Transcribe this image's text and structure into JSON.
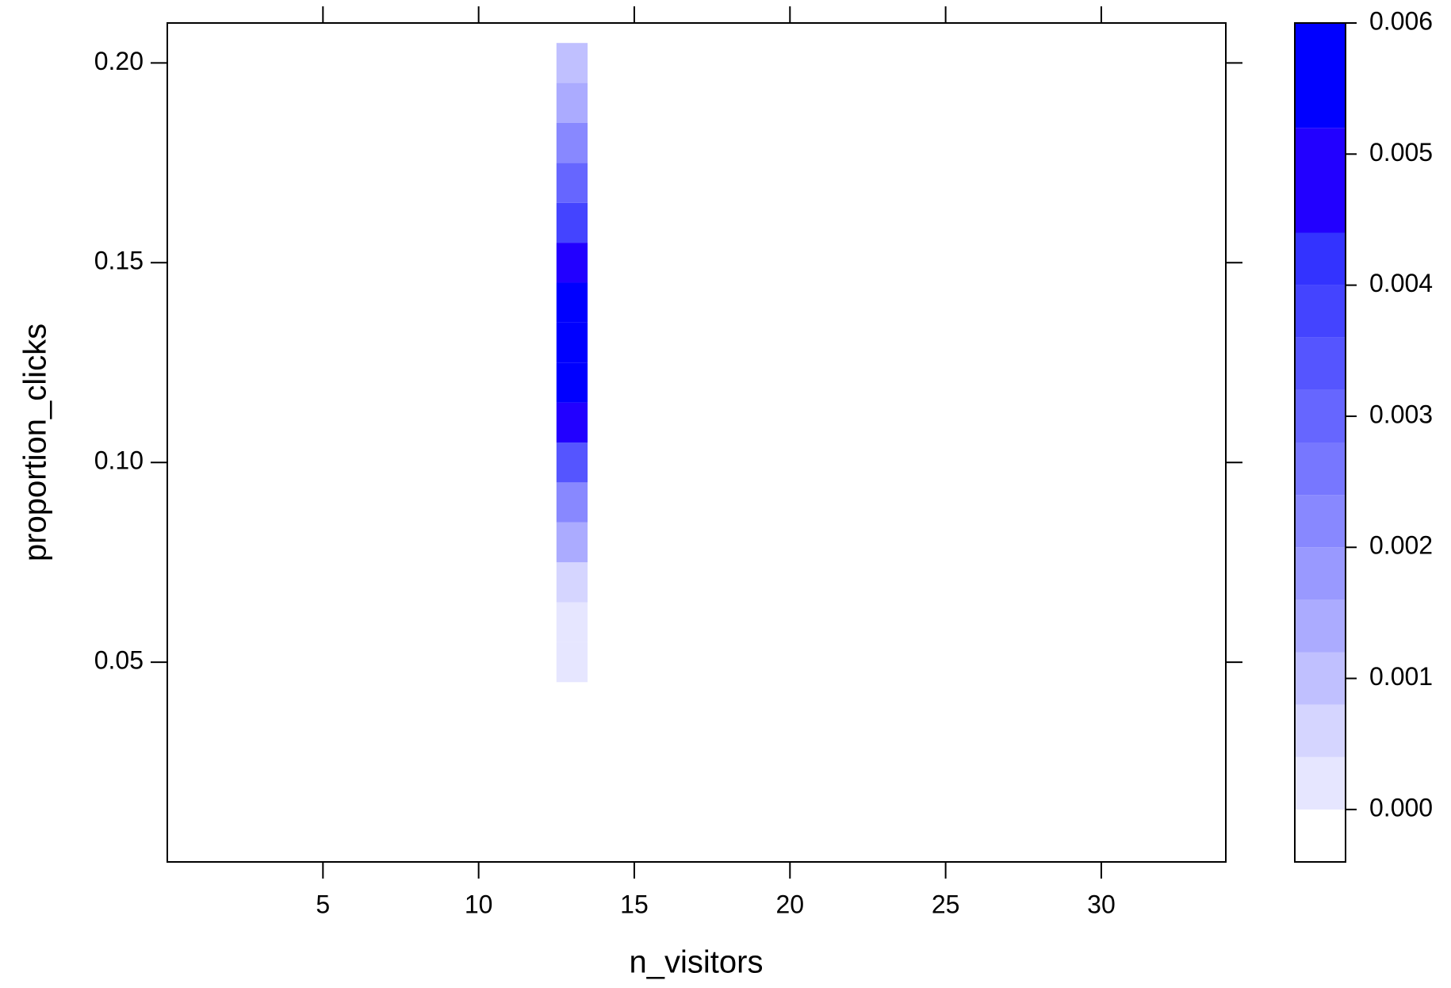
{
  "chart_data": {
    "type": "heatmap",
    "x_label": "n_visitors",
    "y_label": "proportion_clicks",
    "x": [
      13,
      13,
      13,
      13,
      13,
      13,
      13,
      13,
      13,
      13,
      13,
      13,
      13,
      13,
      13,
      13
    ],
    "y": [
      0.05,
      0.06,
      0.07,
      0.08,
      0.09,
      0.1,
      0.11,
      0.12,
      0.13,
      0.14,
      0.15,
      0.16,
      0.17,
      0.18,
      0.19,
      0.2
    ],
    "values": [
      0.0002,
      0.0003,
      0.0007,
      0.0015,
      0.0024,
      0.0034,
      0.0047,
      0.0055,
      0.0058,
      0.0056,
      0.0048,
      0.0038,
      0.003,
      0.0022,
      0.0014,
      0.001
    ],
    "cell_width": 1,
    "cell_height": 0.01,
    "xlim": [
      0,
      34
    ],
    "xticks": [
      5,
      10,
      15,
      20,
      25,
      30
    ],
    "ylim": [
      0,
      0.21
    ],
    "yticks": [
      0.05,
      {
        "value": 0.1,
        "label": "0.10"
      },
      0.15,
      {
        "value": 0.2,
        "label": "0.20"
      }
    ],
    "colorbar": {
      "lim": [
        -0.0004,
        0.006
      ],
      "breaks": [
        -0.0004,
        0,
        0.0004,
        0.0008,
        0.0012,
        0.0016,
        0.002,
        0.0024,
        0.0028,
        0.0032,
        0.0036,
        0.004,
        0.0044,
        0.0052,
        0.006
      ],
      "colors": [
        "#ffffff",
        "#e6e6ff",
        "#d5d5ff",
        "#c0c0ff",
        "#ababff",
        "#9999ff",
        "#8888ff",
        "#7777ff",
        "#6666ff",
        "#5555ff",
        "#4444ff",
        "#3333ff",
        "#2200ff",
        "#0000ff"
      ],
      "ticks": [
        {
          "value": 0,
          "label": "0.000"
        },
        {
          "value": 0.001,
          "label": "0.001"
        },
        {
          "value": 0.002,
          "label": "0.002"
        },
        {
          "value": 0.003,
          "label": "0.003"
        },
        {
          "value": 0.004,
          "label": "0.004"
        },
        {
          "value": 0.005,
          "label": "0.005"
        },
        {
          "value": 0.006,
          "label": "0.006"
        }
      ]
    }
  }
}
